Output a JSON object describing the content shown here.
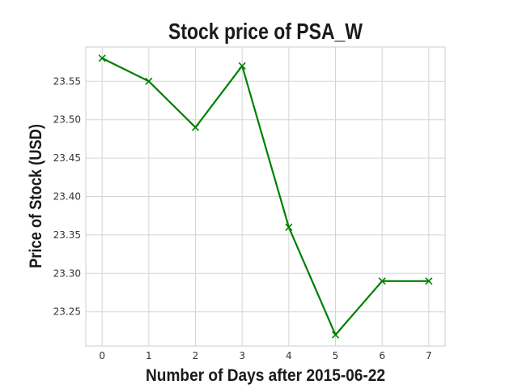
{
  "chart_data": {
    "type": "line",
    "title": "Stock price of PSA_W",
    "xlabel": "Number of Days after 2015-06-22",
    "ylabel": "Price of Stock (USD)",
    "x": [
      0,
      1,
      2,
      3,
      4,
      5,
      6,
      7
    ],
    "series": [
      {
        "name": "PSA_W",
        "color": "#008000",
        "marker": "x",
        "values": [
          23.58,
          23.55,
          23.49,
          23.57,
          23.36,
          23.22,
          23.29,
          23.29
        ]
      }
    ],
    "xticks": [
      "0",
      "1",
      "2",
      "3",
      "4",
      "5",
      "6",
      "7"
    ],
    "yticks": [
      "23.25",
      "23.30",
      "23.35",
      "23.40",
      "23.45",
      "23.50",
      "23.55"
    ],
    "xlim": [
      -0.35,
      7.35
    ],
    "ylim": [
      23.2054,
      23.5946
    ],
    "grid": true,
    "legend": "none"
  }
}
